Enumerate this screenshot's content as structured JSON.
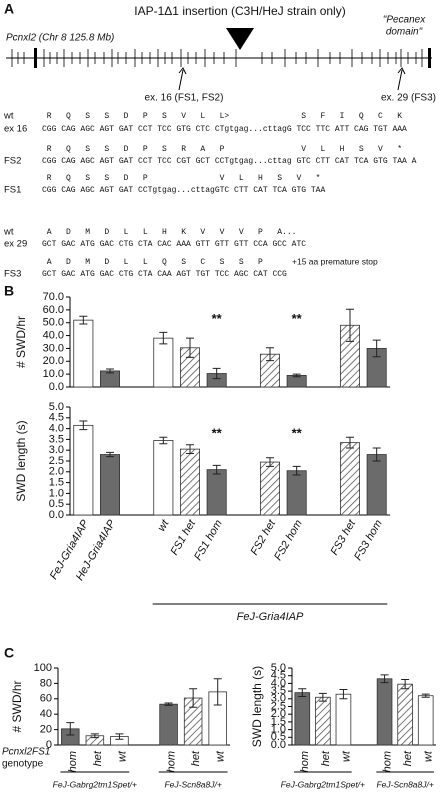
{
  "panel_labels": [
    "A",
    "B",
    "C"
  ],
  "panel_a": {
    "gene_label": "Pcnxl2 (Chr 8 125.8 Mb)",
    "insertion_label": "IAP-1Δ1 insertion (C3H/HeJ strain only)",
    "domain_label": [
      "\"Pecanex",
      "domain\""
    ],
    "exon_labels": [
      "ex. 16 (FS1, FS2)",
      "ex. 29 (FS3)"
    ],
    "sequences": [
      {
        "label": [
          "wt",
          "ex 16"
        ],
        "amino": " R   Q   S   S   D   P   S   V   L   L>               S   F   I   Q   C   K",
        "nucleotides": "CGG CAG AGC AGT GAT CCT TCC GTG CTC CTgtgag...cttagG TCC TTC ATT CAG TGT AAA"
      },
      {
        "label": [
          "FS2"
        ],
        "amino": " R   Q   S   S   D   P   S   R   A   P                V   L   H   S   V   *",
        "nucleotides": "CGG CAG AGC AGT GAT CCT TCC CGT GCT CCTgtgag...cttag GTC CTT CAT TCA GTG TAA A"
      },
      {
        "label": [
          "FS1"
        ],
        "amino": " R   Q   S   S   D   P               V   L   H   S   V   *",
        "nucleotides": "CGG CAG AGC AGT GAT CCTgtgag...cttagGTC CTT CAT TCA GTG TAA"
      },
      {
        "label": [
          "wt",
          "ex 29"
        ],
        "amino": " A   D   M   D   L   L   H   K   V   V   V   P   A...",
        "nucleotides": "GCT GAC ATG GAC CTG CTA CAC AAA GTT GTT GTT CCA GCC ATC"
      },
      {
        "label": [
          "FS3"
        ],
        "amino": " A   D   M   D   L   L   Q   S   C   S   S   P",
        "nucleotides": "GCT GAC ATG GAC CTG CTA CAA AGT TGT TCC AGC CAT CCG",
        "note": "+15 aa premature stop"
      }
    ]
  },
  "chart_data": [
    {
      "type": "bar",
      "ylabel": "# SWD/hr",
      "values": [
        52.0,
        12.5,
        null,
        38.0,
        30.5,
        10.5,
        null,
        25.5,
        9.0,
        null,
        48.0,
        30.0
      ],
      "errors": [
        3.0,
        1.5,
        null,
        4.5,
        7.5,
        4.0,
        null,
        5.0,
        1.0,
        null,
        12.5,
        6.5
      ],
      "colors": [
        "#ffffff",
        "#6b6b6b",
        null,
        "#ffffff",
        "#555555",
        "#6b6b6b",
        null,
        "#555555",
        "#6b6b6b",
        null,
        "#555555",
        "#6b6b6b"
      ],
      "hatched": [
        false,
        false,
        null,
        false,
        true,
        false,
        null,
        true,
        false,
        null,
        true,
        false
      ],
      "annotations": [
        null,
        null,
        null,
        null,
        null,
        "**",
        null,
        null,
        "**",
        null,
        null,
        null
      ],
      "ylim": [
        0,
        70
      ],
      "yticks": [
        {
          "value": 0,
          "label": "0.0"
        },
        {
          "value": 10,
          "label": "10.0"
        },
        {
          "value": 20,
          "label": "20.0"
        },
        {
          "value": 30,
          "label": "30.0"
        },
        {
          "value": 40,
          "label": "40.0"
        },
        {
          "value": 50,
          "label": "50.0"
        },
        {
          "value": 60,
          "label": "60.0"
        },
        {
          "value": 70,
          "label": "70.0"
        }
      ]
    },
    {
      "type": "bar",
      "ylabel": "SWD length (s)",
      "categories": [
        "FeJ-Gria4IAP",
        "HeJ-Gria4IAP",
        null,
        "wt",
        "FS1 het",
        "FS1 hom",
        null,
        "FS2 het",
        "FS2 hom",
        null,
        "FS3 het",
        "FS3 hom"
      ],
      "groups": [
        null,
        null,
        null,
        "FeJ-Gria4IAP",
        "FeJ-Gria4IAP",
        "FeJ-Gria4IAP",
        "FeJ-Gria4IAP",
        "FeJ-Gria4IAP",
        "FeJ-Gria4IAP",
        "FeJ-Gria4IAP",
        "FeJ-Gria4IAP",
        "FeJ-Gria4IAP"
      ],
      "values": [
        4.15,
        2.8,
        null,
        3.45,
        3.05,
        2.1,
        null,
        2.45,
        2.05,
        null,
        3.35,
        2.8
      ],
      "errors": [
        0.2,
        0.1,
        null,
        0.15,
        0.2,
        0.2,
        null,
        0.2,
        0.2,
        null,
        0.25,
        0.3
      ],
      "colors": [
        "#ffffff",
        "#6b6b6b",
        null,
        "#ffffff",
        "#555555",
        "#6b6b6b",
        null,
        "#555555",
        "#6b6b6b",
        null,
        "#555555",
        "#6b6b6b"
      ],
      "hatched": [
        false,
        false,
        null,
        false,
        true,
        false,
        null,
        true,
        false,
        null,
        true,
        false
      ],
      "annotations": [
        null,
        null,
        null,
        null,
        null,
        "**",
        null,
        null,
        "**",
        null,
        null,
        null
      ],
      "ylim": [
        0,
        5
      ],
      "yticks": [
        {
          "value": 0,
          "label": "0.0"
        },
        0.5,
        {
          "value": 1,
          "label": "1.0"
        },
        1.5,
        {
          "value": 2,
          "label": "2.0"
        },
        2.5,
        {
          "value": 3,
          "label": "3.0"
        },
        3.5,
        {
          "value": 4,
          "label": "4.0"
        },
        4.5,
        {
          "value": 5,
          "label": "5.0"
        }
      ]
    },
    {
      "type": "bar",
      "ylabel": "# SWD/hr",
      "xlabel": [
        "Pcnxl2FS1",
        "genotype"
      ],
      "categories": [
        "hom",
        "het",
        "wt",
        null,
        "hom",
        "het",
        "wt"
      ],
      "groups": [
        "FeJ-Gabrg2tm1Spet/+",
        "FeJ-Gabrg2tm1Spet/+",
        "FeJ-Gabrg2tm1Spet/+",
        null,
        "FeJ-Scn8a8J/+",
        "FeJ-Scn8a8J/+",
        "FeJ-Scn8a8J/+"
      ],
      "values": [
        21,
        12,
        11,
        null,
        53,
        61,
        69
      ],
      "errors": [
        8,
        2.5,
        3.5,
        null,
        1.5,
        12,
        17
      ],
      "colors": [
        "#6b6b6b",
        "#555555",
        "#ffffff",
        null,
        "#6b6b6b",
        "#555555",
        "#ffffff"
      ],
      "hatched": [
        false,
        true,
        false,
        null,
        false,
        true,
        false
      ],
      "ylim": [
        0,
        100
      ],
      "yticks": [
        0,
        20,
        40,
        60,
        80,
        100
      ]
    },
    {
      "type": "bar",
      "ylabel": "SWD length (s)",
      "categories": [
        "hom",
        "het",
        "wt",
        null,
        "hom",
        "het",
        "wt"
      ],
      "groups": [
        "FeJ-Gabrg2tm1Spet/+",
        "FeJ-Gabrg2tm1Spet/+",
        "FeJ-Gabrg2tm1Spet/+",
        null,
        "FeJ-Scn8a8J/+",
        "FeJ-Scn8a8J/+",
        "FeJ-Scn8a8J/+"
      ],
      "values": [
        3.4,
        3.1,
        3.3,
        null,
        4.3,
        3.95,
        3.2
      ],
      "errors": [
        0.25,
        0.25,
        0.3,
        null,
        0.25,
        0.3,
        0.1
      ],
      "colors": [
        "#6b6b6b",
        "#555555",
        "#ffffff",
        null,
        "#6b6b6b",
        "#555555",
        "#ffffff"
      ],
      "hatched": [
        false,
        true,
        false,
        null,
        false,
        true,
        false
      ],
      "ylim": [
        0,
        5
      ],
      "yticks": [
        {
          "value": 0,
          "label": "0.0"
        },
        0.5,
        {
          "value": 1,
          "label": "1.0"
        },
        1.5,
        {
          "value": 2,
          "label": "2.0"
        },
        2.5,
        {
          "value": 3,
          "label": "3.0"
        },
        3.5,
        {
          "value": 4,
          "label": "4.0"
        },
        4.5,
        {
          "value": 5,
          "label": "5.0"
        }
      ]
    }
  ]
}
